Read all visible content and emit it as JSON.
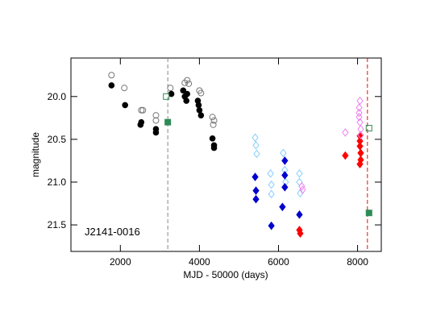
{
  "chart_data": {
    "type": "scatter",
    "xlabel": "MJD - 50000 (days)",
    "ylabel": "magnitude",
    "annotation": "J2141-0016",
    "xlim": [
      750,
      8600
    ],
    "xticks": [
      2000,
      4000,
      6000,
      8000
    ],
    "ylim": [
      19.55,
      21.81
    ],
    "y_inverted": true,
    "yticks": [
      {
        "value": 20.0,
        "label": "20.0"
      },
      {
        "value": 20.5,
        "label": "20.5"
      },
      {
        "value": 21.0,
        "label": "21.0"
      },
      {
        "value": 21.5,
        "label": "21.5"
      }
    ],
    "vlines": [
      {
        "x": 3200,
        "color": "#888888"
      },
      {
        "x": 8250,
        "color": "#ff0000"
      }
    ],
    "series": [
      {
        "color": "#777777",
        "marker": "open-circle",
        "x": [
          1776,
          2100,
          2530,
          2570,
          2900,
          2900,
          3265,
          3630,
          3690,
          3730,
          4000,
          4040,
          4330,
          4370,
          4350
        ],
        "values": [
          19.75,
          19.9,
          20.16,
          20.16,
          20.22,
          20.28,
          19.9,
          19.84,
          19.81,
          19.85,
          19.93,
          19.96,
          20.24,
          20.28,
          20.33
        ]
      },
      {
        "color": "#000000",
        "marker": "circle",
        "x": [
          1776,
          2120,
          2510,
          2530,
          2900,
          2900,
          3290,
          3590,
          3630,
          3670,
          3690,
          3960,
          4000,
          4040,
          3980,
          4330,
          4370,
          4370
        ],
        "values": [
          19.87,
          20.1,
          20.33,
          20.3,
          20.38,
          20.42,
          19.97,
          19.93,
          20.0,
          20.05,
          19.97,
          20.05,
          20.16,
          20.22,
          20.1,
          20.49,
          20.57,
          20.6
        ]
      },
      {
        "color": "#2e8b57",
        "marker": "open-square",
        "x": [
          3160,
          8290
        ],
        "values": [
          20.0,
          20.37
        ]
      },
      {
        "color": "#2e8b57",
        "marker": "square",
        "x": [
          3200,
          8290
        ],
        "values": [
          20.3,
          21.36
        ]
      },
      {
        "color": "#87cefa",
        "marker": "open-diamond",
        "x": [
          5410,
          5430,
          5450,
          5800,
          5820,
          5820,
          6120,
          6160,
          6180,
          6530,
          6530,
          6550
        ],
        "values": [
          20.48,
          20.57,
          20.67,
          20.9,
          21.03,
          21.14,
          20.66,
          20.86,
          21.0,
          20.9,
          21.0,
          21.13
        ]
      },
      {
        "color": "#0000cd",
        "marker": "diamond",
        "x": [
          5410,
          5430,
          5430,
          5820,
          6100,
          6160,
          6160,
          6160,
          6530
        ],
        "values": [
          20.94,
          21.1,
          21.2,
          21.51,
          21.29,
          20.75,
          20.92,
          21.06,
          21.38
        ]
      },
      {
        "color": "#ff0000",
        "marker": "diamond",
        "x": [
          6530,
          6550,
          7690,
          8060,
          8060,
          8060,
          8080,
          8060,
          8080
        ],
        "values": [
          21.56,
          21.6,
          20.69,
          20.46,
          20.52,
          20.58,
          20.66,
          20.79,
          20.74
        ]
      },
      {
        "color": "#ee82ee",
        "marker": "open-diamond",
        "x": [
          6590,
          6610,
          7690,
          8040,
          8040,
          8060,
          8080,
          8040,
          8080,
          8060
        ],
        "values": [
          21.05,
          21.09,
          20.42,
          20.13,
          20.24,
          20.3,
          20.38,
          20.19,
          20.45,
          20.05
        ]
      }
    ]
  }
}
